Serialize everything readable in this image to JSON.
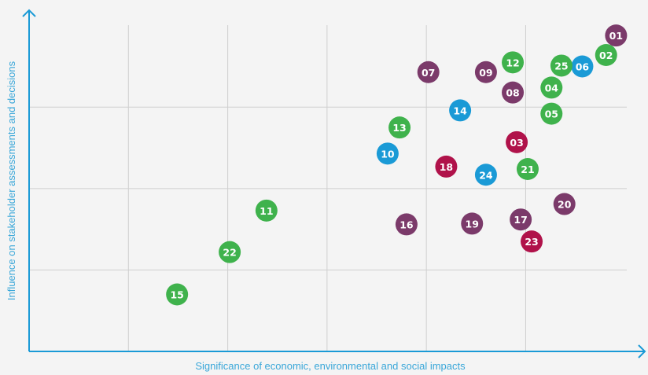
{
  "chart_data": {
    "type": "scatter",
    "xlabel": "Significance of economic, environmental and social impacts",
    "ylabel": "Influence on stakeholder assessments and decisions",
    "xlim": [
      0,
      6.2
    ],
    "ylim": [
      0,
      4.2
    ],
    "xticks": [
      1,
      2,
      3,
      4,
      5
    ],
    "yticks": [
      1,
      2,
      3
    ],
    "grid": true,
    "points": [
      {
        "label": "01",
        "x": 5.91,
        "y": 3.88,
        "color": "#7b3a6a"
      },
      {
        "label": "02",
        "x": 5.81,
        "y": 3.64,
        "color": "#3fb24c"
      },
      {
        "label": "06",
        "x": 5.57,
        "y": 3.5,
        "color": "#1a9ad6"
      },
      {
        "label": "25",
        "x": 5.36,
        "y": 3.51,
        "color": "#3fb24c"
      },
      {
        "label": "12",
        "x": 4.87,
        "y": 3.55,
        "color": "#3fb24c"
      },
      {
        "label": "09",
        "x": 4.6,
        "y": 3.43,
        "color": "#7b3a6a"
      },
      {
        "label": "07",
        "x": 4.02,
        "y": 3.43,
        "color": "#7b3a6a"
      },
      {
        "label": "04",
        "x": 5.26,
        "y": 3.24,
        "color": "#3fb24c"
      },
      {
        "label": "08",
        "x": 4.87,
        "y": 3.18,
        "color": "#7b3a6a"
      },
      {
        "label": "14",
        "x": 4.34,
        "y": 2.96,
        "color": "#1a9ad6"
      },
      {
        "label": "05",
        "x": 5.26,
        "y": 2.92,
        "color": "#3fb24c"
      },
      {
        "label": "13",
        "x": 3.73,
        "y": 2.75,
        "color": "#3fb24c"
      },
      {
        "label": "03",
        "x": 4.91,
        "y": 2.57,
        "color": "#b0124a"
      },
      {
        "label": "10",
        "x": 3.61,
        "y": 2.43,
        "color": "#1a9ad6"
      },
      {
        "label": "18",
        "x": 4.2,
        "y": 2.27,
        "color": "#b0124a"
      },
      {
        "label": "24",
        "x": 4.6,
        "y": 2.17,
        "color": "#1a9ad6"
      },
      {
        "label": "21",
        "x": 5.02,
        "y": 2.24,
        "color": "#3fb24c"
      },
      {
        "label": "20",
        "x": 5.39,
        "y": 1.81,
        "color": "#7b3a6a"
      },
      {
        "label": "11",
        "x": 2.39,
        "y": 1.73,
        "color": "#3fb24c"
      },
      {
        "label": "17",
        "x": 4.95,
        "y": 1.62,
        "color": "#7b3a6a"
      },
      {
        "label": "19",
        "x": 4.46,
        "y": 1.57,
        "color": "#7b3a6a"
      },
      {
        "label": "16",
        "x": 3.8,
        "y": 1.56,
        "color": "#7b3a6a"
      },
      {
        "label": "23",
        "x": 5.06,
        "y": 1.35,
        "color": "#b0124a"
      },
      {
        "label": "22",
        "x": 2.02,
        "y": 1.22,
        "color": "#3fb24c"
      },
      {
        "label": "15",
        "x": 1.49,
        "y": 0.7,
        "color": "#3fb24c"
      }
    ]
  }
}
